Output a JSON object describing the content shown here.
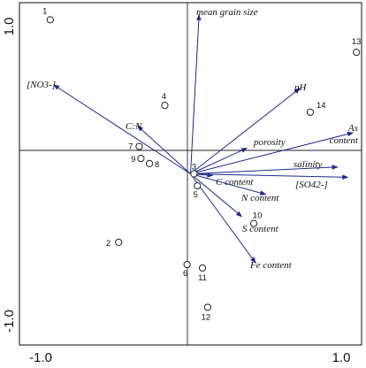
{
  "chart_data": {
    "type": "scatter",
    "subtype": "ordination-biplot",
    "xlim": [
      -1.0,
      1.0
    ],
    "ylim": [
      -1.0,
      1.0
    ],
    "x_tick_labels": [
      "-1.0",
      "1.0"
    ],
    "y_tick_labels": [
      "1.0",
      "-1.0"
    ],
    "grid": false,
    "legend": "none",
    "colors": {
      "vector": "#1f2a8c",
      "marker": "#222222",
      "frame": "#222222"
    },
    "vectors": [
      {
        "name": "mean grain size",
        "x": 0.05,
        "y": 0.93
      },
      {
        "name": "[NO3-]",
        "x": -0.8,
        "y": 0.52
      },
      {
        "name": "C:N",
        "x": -0.31,
        "y": 0.28
      },
      {
        "name": "pH",
        "x": 0.64,
        "y": 0.5
      },
      {
        "name": "As content",
        "x": 0.95,
        "y": 0.24
      },
      {
        "name": "porosity",
        "x": 0.33,
        "y": 0.15
      },
      {
        "name": "salinity",
        "x": 0.86,
        "y": 0.04
      },
      {
        "name": "[SO42-]",
        "x": 0.92,
        "y": -0.02
      },
      {
        "name": "C content",
        "x": 0.13,
        "y": -0.01
      },
      {
        "name": "N content",
        "x": 0.44,
        "y": -0.12
      },
      {
        "name": "S content",
        "x": 0.3,
        "y": -0.25
      },
      {
        "name": "Fe content",
        "x": 0.38,
        "y": -0.52
      }
    ],
    "vector_labels": {
      "mean_grain_size": "mean grain size",
      "no3": "[NO3-]",
      "cn": "C:N",
      "ph": "pH",
      "as_line1": "As",
      "as_line2": "content",
      "porosity": "porosity",
      "salinity": "salinity",
      "so4": "[SO42-]",
      "c_content": "C content",
      "n_content": "N content",
      "s_content": "S content",
      "fe_content": "Fe content"
    },
    "samples": [
      {
        "label": "1",
        "x": -0.82,
        "y": 0.9
      },
      {
        "label": "2",
        "x": -0.42,
        "y": -0.4
      },
      {
        "label": "3",
        "x": 0.02,
        "y": 0.0
      },
      {
        "label": "4",
        "x": -0.15,
        "y": 0.4
      },
      {
        "label": "5",
        "x": 0.04,
        "y": -0.07
      },
      {
        "label": "6",
        "x": -0.02,
        "y": -0.53
      },
      {
        "label": "7",
        "x": -0.3,
        "y": 0.16
      },
      {
        "label": "8",
        "x": -0.24,
        "y": 0.06
      },
      {
        "label": "9",
        "x": -0.29,
        "y": 0.09
      },
      {
        "label": "10",
        "x": 0.37,
        "y": -0.29
      },
      {
        "label": "11",
        "x": 0.07,
        "y": -0.55
      },
      {
        "label": "12",
        "x": 0.1,
        "y": -0.78
      },
      {
        "label": "13",
        "x": 0.97,
        "y": 0.71
      },
      {
        "label": "14",
        "x": 0.7,
        "y": 0.36
      }
    ]
  }
}
